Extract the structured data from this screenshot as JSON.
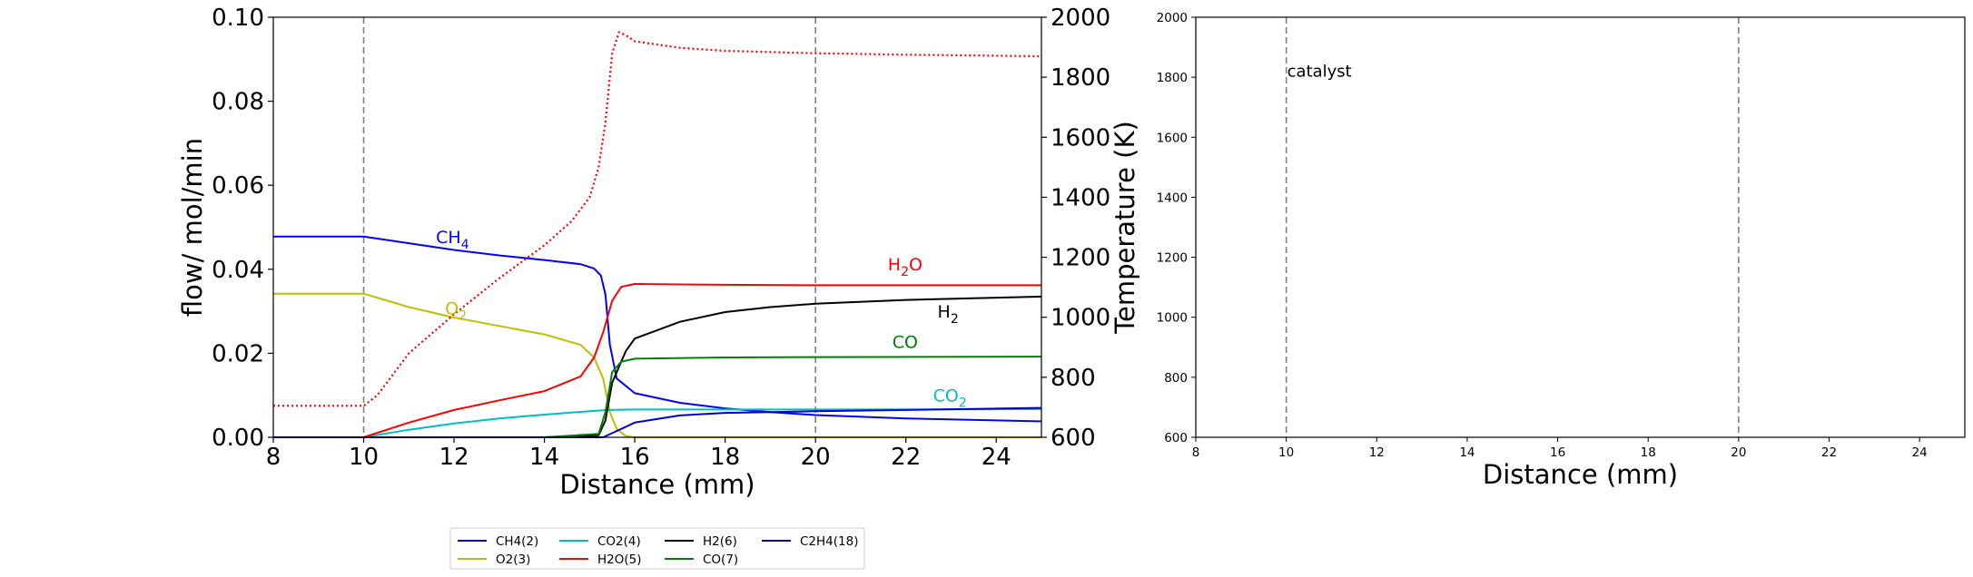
{
  "chart_data": [
    {
      "type": "line",
      "xlabel": "Distance (mm)",
      "ylabel": "flow/ mol/min",
      "y2label": "Temperature (K)",
      "xlim": [
        8,
        25
      ],
      "ylim": [
        0,
        0.1
      ],
      "y2lim": [
        600,
        2000
      ],
      "xticks": [
        8,
        10,
        12,
        14,
        16,
        18,
        20,
        22,
        24
      ],
      "yticks": [
        0.0,
        0.02,
        0.04,
        0.06,
        0.08,
        0.1
      ],
      "y2ticks": [
        600,
        800,
        1000,
        1200,
        1400,
        1600,
        1800,
        2000
      ],
      "catalyst_bounds": [
        10,
        20
      ],
      "series": [
        {
          "name": "CH4(2)",
          "color": "#0000ff",
          "style": "solid",
          "axis": "left",
          "x": [
            8,
            10,
            11,
            12,
            13,
            14,
            14.8,
            15.1,
            15.25,
            15.35,
            15.45,
            15.6,
            16,
            17,
            18,
            19,
            20,
            22,
            25
          ],
          "y": [
            0.0478,
            0.0478,
            0.0462,
            0.0446,
            0.0433,
            0.0422,
            0.0412,
            0.0402,
            0.0385,
            0.034,
            0.022,
            0.014,
            0.0105,
            0.0082,
            0.0069,
            0.006,
            0.0053,
            0.0045,
            0.0038
          ]
        },
        {
          "name": "O2(3)",
          "color": "#bfbf00",
          "style": "solid",
          "axis": "left",
          "x": [
            8,
            10,
            11,
            12,
            13,
            14,
            14.8,
            15.1,
            15.3,
            15.45,
            15.6,
            15.8,
            16,
            25
          ],
          "y": [
            0.0342,
            0.0342,
            0.031,
            0.0285,
            0.0265,
            0.0245,
            0.022,
            0.019,
            0.014,
            0.006,
            0.002,
            0.0003,
            0.0,
            0.0
          ]
        },
        {
          "name": "CO2(4)",
          "color": "#00bfbf",
          "style": "solid",
          "axis": "left",
          "x": [
            8,
            10,
            11,
            12,
            13,
            14,
            15,
            15.4,
            16,
            18,
            20,
            25
          ],
          "y": [
            0.0,
            0.0,
            0.0018,
            0.0033,
            0.0045,
            0.0054,
            0.0062,
            0.0065,
            0.0066,
            0.0066,
            0.0066,
            0.0067
          ]
        },
        {
          "name": "H2O(5)",
          "color": "#ff0000",
          "style": "solid",
          "axis": "left",
          "x": [
            8,
            10,
            11,
            12,
            13,
            14,
            14.8,
            15.1,
            15.3,
            15.5,
            15.7,
            16,
            17,
            18,
            20,
            22,
            25
          ],
          "y": [
            0.0,
            0.0,
            0.0035,
            0.0065,
            0.0088,
            0.011,
            0.0145,
            0.019,
            0.025,
            0.0325,
            0.0358,
            0.0365,
            0.0364,
            0.0363,
            0.0362,
            0.0362,
            0.0362
          ]
        },
        {
          "name": "H2(6)",
          "color": "#000000",
          "style": "solid",
          "axis": "left",
          "x": [
            8,
            14,
            15.2,
            15.35,
            15.5,
            15.8,
            16,
            17,
            18,
            19,
            20,
            22,
            25
          ],
          "y": [
            0.0,
            0.0,
            0.0005,
            0.004,
            0.013,
            0.0205,
            0.0235,
            0.0275,
            0.0298,
            0.031,
            0.0318,
            0.0327,
            0.0335
          ]
        },
        {
          "name": "CO(7)",
          "color": "#008000",
          "style": "solid",
          "axis": "left",
          "x": [
            8,
            14,
            15.2,
            15.35,
            15.5,
            15.7,
            16,
            18,
            20,
            25
          ],
          "y": [
            0.0,
            0.0,
            0.0008,
            0.006,
            0.0155,
            0.018,
            0.0187,
            0.019,
            0.0191,
            0.0192
          ]
        },
        {
          "name": "C2H4(18)",
          "color": "#0000cc",
          "style": "solid",
          "axis": "left",
          "x": [
            8,
            15.3,
            15.6,
            16,
            17,
            18,
            20,
            22,
            25
          ],
          "y": [
            0.0,
            0.0,
            0.0015,
            0.0035,
            0.0052,
            0.0058,
            0.0062,
            0.0065,
            0.007
          ]
        },
        {
          "name": "",
          "color": "#ff0000",
          "style": "dotted",
          "axis": "right",
          "x": [
            8,
            10,
            10.3,
            11,
            12,
            13,
            14,
            14.6,
            15.0,
            15.2,
            15.35,
            15.5,
            15.65,
            15.8,
            16,
            17,
            18,
            20,
            22,
            25
          ],
          "y": [
            705,
            705,
            740,
            880,
            1010,
            1130,
            1240,
            1320,
            1400,
            1500,
            1650,
            1880,
            1950,
            1940,
            1920,
            1898,
            1888,
            1880,
            1875,
            1870
          ]
        }
      ],
      "annotations": [
        {
          "text": "CH",
          "sub": "4",
          "x": 11.6,
          "y": 0.0462,
          "color": "#0000ff"
        },
        {
          "text": "O",
          "sub": "2",
          "x": 11.8,
          "y": 0.0293,
          "color": "#bfbf00"
        },
        {
          "text": "H",
          "sub": "2",
          "post": "O",
          "x": 21.6,
          "y": 0.0397,
          "color": "#ff0000"
        },
        {
          "text": "H",
          "sub": "2",
          "x": 22.7,
          "y": 0.0285,
          "color": "#000000"
        },
        {
          "text": "CO",
          "x": 21.7,
          "y": 0.0213,
          "color": "#008000"
        },
        {
          "text": "CO",
          "sub": "2",
          "x": 22.6,
          "y": 0.0085,
          "color": "#00bfbf"
        }
      ],
      "legend": {
        "placement": "bottom",
        "columns": 4,
        "entries": [
          "CH4(2)",
          "O2(3)",
          "CO2(4)",
          "H2O(5)",
          "H2(6)",
          "CO(7)",
          "C2H4(18)"
        ]
      }
    },
    {
      "type": "line",
      "xlabel": "Distance (mm)",
      "xlim": [
        8,
        25
      ],
      "ylim": [
        600,
        2000
      ],
      "xticks": [
        8,
        10,
        12,
        14,
        16,
        18,
        20,
        22,
        24
      ],
      "yticks": [
        600,
        800,
        1000,
        1200,
        1400,
        1600,
        1800,
        2000
      ],
      "catalyst_bounds": [
        10,
        20
      ],
      "catalyst_label": "catalyst",
      "series": []
    }
  ]
}
